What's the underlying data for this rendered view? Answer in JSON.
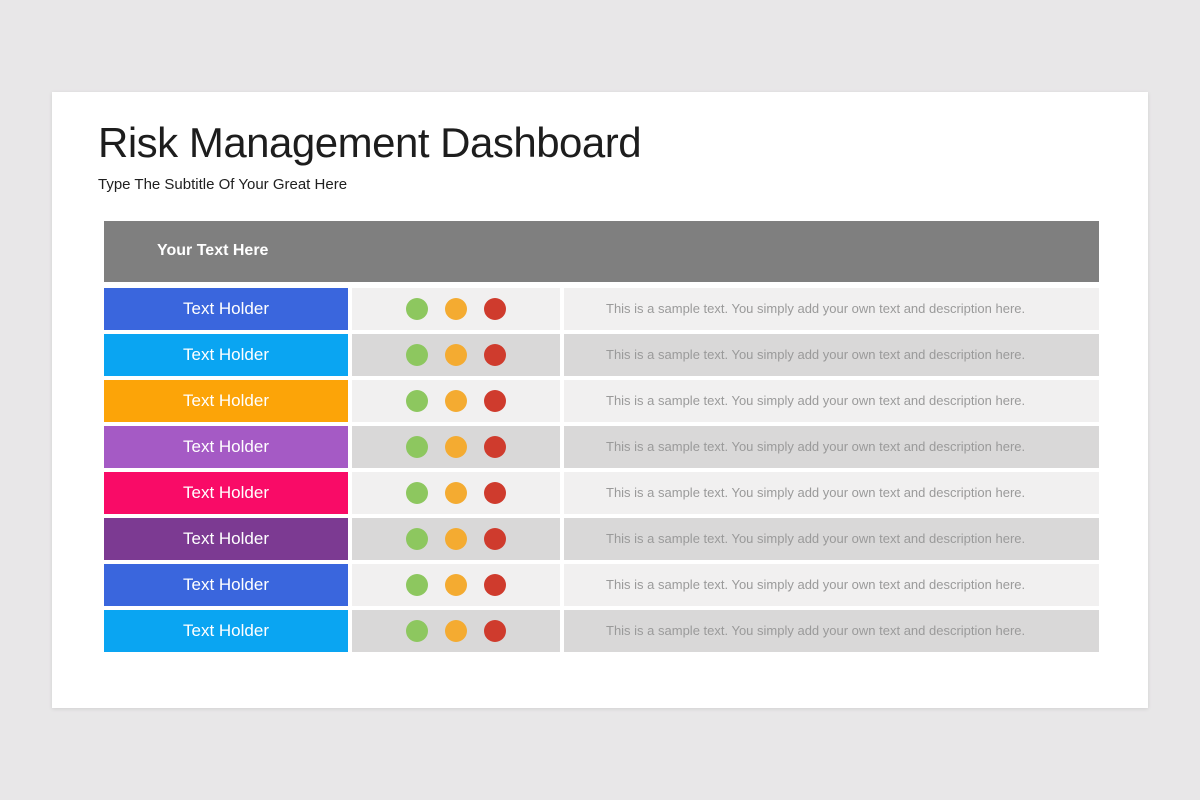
{
  "page": {
    "background_color": "#e8e7e8",
    "card_color": "#ffffff"
  },
  "slide": {
    "title": "Risk Management Dashboard",
    "subtitle": "Type The Subtitle Of Your Great Here"
  },
  "table": {
    "header": {
      "label": "Your Text Here",
      "background": "#7f7f7f"
    },
    "row_backgrounds": {
      "odd": "#f1f0f0",
      "even": "#d9d8d8"
    },
    "dot_colors": {
      "green": "#8dc75f",
      "amber": "#f4ab31",
      "red": "#cf3b2d"
    },
    "rows": [
      {
        "label": "Text Holder",
        "color": "#3a66dd",
        "description": "This is a sample text. You simply add your own text and description here."
      },
      {
        "label": "Text Holder",
        "color": "#0aa5f2",
        "description": "This is a sample text. You simply add your own text and description here."
      },
      {
        "label": "Text Holder",
        "color": "#fca408",
        "description": "This is a sample text. You simply add your own text and description here."
      },
      {
        "label": "Text Holder",
        "color": "#a55ac5",
        "description": "This is a sample text. You simply add your own text and description here."
      },
      {
        "label": "Text Holder",
        "color": "#f90b67",
        "description": "This is a sample text. You simply add your own text and description here."
      },
      {
        "label": "Text Holder",
        "color": "#7c3a92",
        "description": "This is a sample text. You simply add your own text and description here."
      },
      {
        "label": "Text Holder",
        "color": "#3a66dd",
        "description": "This is a sample text. You simply add your own text and description here."
      },
      {
        "label": "Text Holder",
        "color": "#0aa5f2",
        "description": "This is a sample text. You simply add your own text and description here."
      }
    ]
  }
}
